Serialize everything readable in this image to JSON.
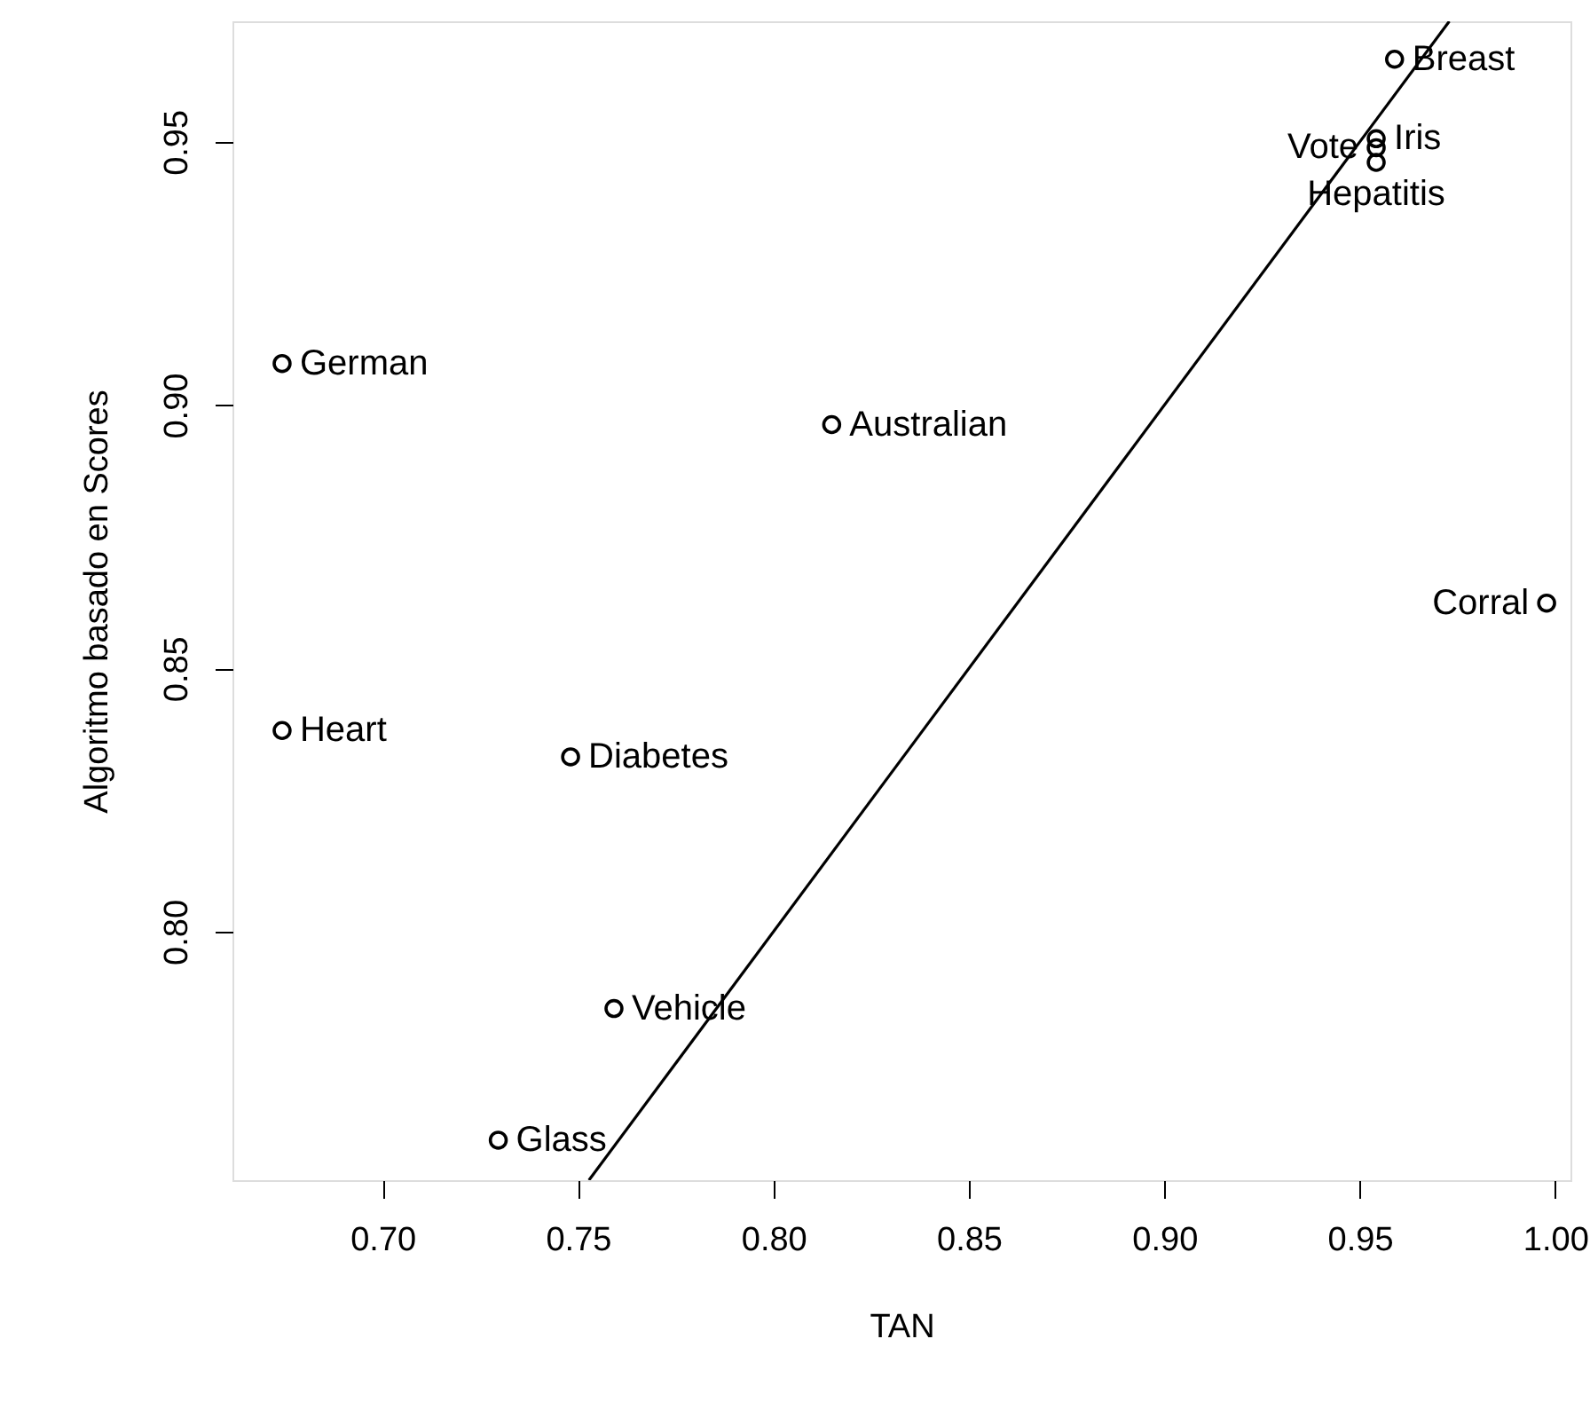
{
  "chart_data": {
    "type": "scatter",
    "xlabel": "TAN",
    "ylabel": "Algoritmo basado en Scores",
    "xlim": [
      0.6616,
      1.0039
    ],
    "ylim": [
      0.7528,
      0.9729
    ],
    "xticks": [
      {
        "value": 0.7,
        "label": "0.70"
      },
      {
        "value": 0.75,
        "label": "0.75"
      },
      {
        "value": 0.8,
        "label": "0.80"
      },
      {
        "value": 0.85,
        "label": "0.85"
      },
      {
        "value": 0.9,
        "label": "0.90"
      },
      {
        "value": 0.95,
        "label": "0.95"
      },
      {
        "value": 1.0,
        "label": "1.00"
      }
    ],
    "yticks": [
      {
        "value": 0.8,
        "label": "0.80"
      },
      {
        "value": 0.85,
        "label": "0.85"
      },
      {
        "value": 0.9,
        "label": "0.90"
      },
      {
        "value": 0.95,
        "label": "0.95"
      }
    ],
    "grid": false,
    "marker": "circle",
    "series": [
      {
        "color": "#000000",
        "x": [
          0.6743,
          0.8149,
          0.9589,
          0.9542,
          0.9542,
          0.9542,
          0.9978,
          0.6743,
          0.7481,
          0.7592,
          0.7296
        ],
        "values": [
          0.9079,
          0.8963,
          0.9657,
          0.9506,
          0.9489,
          0.9461,
          0.8624,
          0.8382,
          0.8332,
          0.7854,
          0.7604
        ]
      },
      {
        "type": "line",
        "color": "#000000",
        "line_style": "solid",
        "marker": "none",
        "x": [
          0.7528,
          0.9729
        ],
        "values": [
          0.7528,
          0.9729
        ]
      }
    ],
    "annotations": [
      {
        "text": "German",
        "x": 0.6743,
        "y": 0.9079
      },
      {
        "text": "Australian",
        "x": 0.8149,
        "y": 0.8963
      },
      {
        "text": "Breast",
        "x": 0.9589,
        "y": 0.9657
      },
      {
        "text": "Iris",
        "x": 0.9542,
        "y": 0.9506
      },
      {
        "text": "Vote",
        "x": 0.9542,
        "y": 0.9489
      },
      {
        "text": "Hepatitis",
        "x": 0.9542,
        "y": 0.9461
      },
      {
        "text": "Corral",
        "x": 0.9978,
        "y": 0.8624
      },
      {
        "text": "Heart",
        "x": 0.6743,
        "y": 0.8382
      },
      {
        "text": "Diabetes",
        "x": 0.7481,
        "y": 0.8332
      },
      {
        "text": "Vehicle",
        "x": 0.7592,
        "y": 0.7854
      },
      {
        "text": "Glass",
        "x": 0.7296,
        "y": 0.7604
      }
    ]
  }
}
